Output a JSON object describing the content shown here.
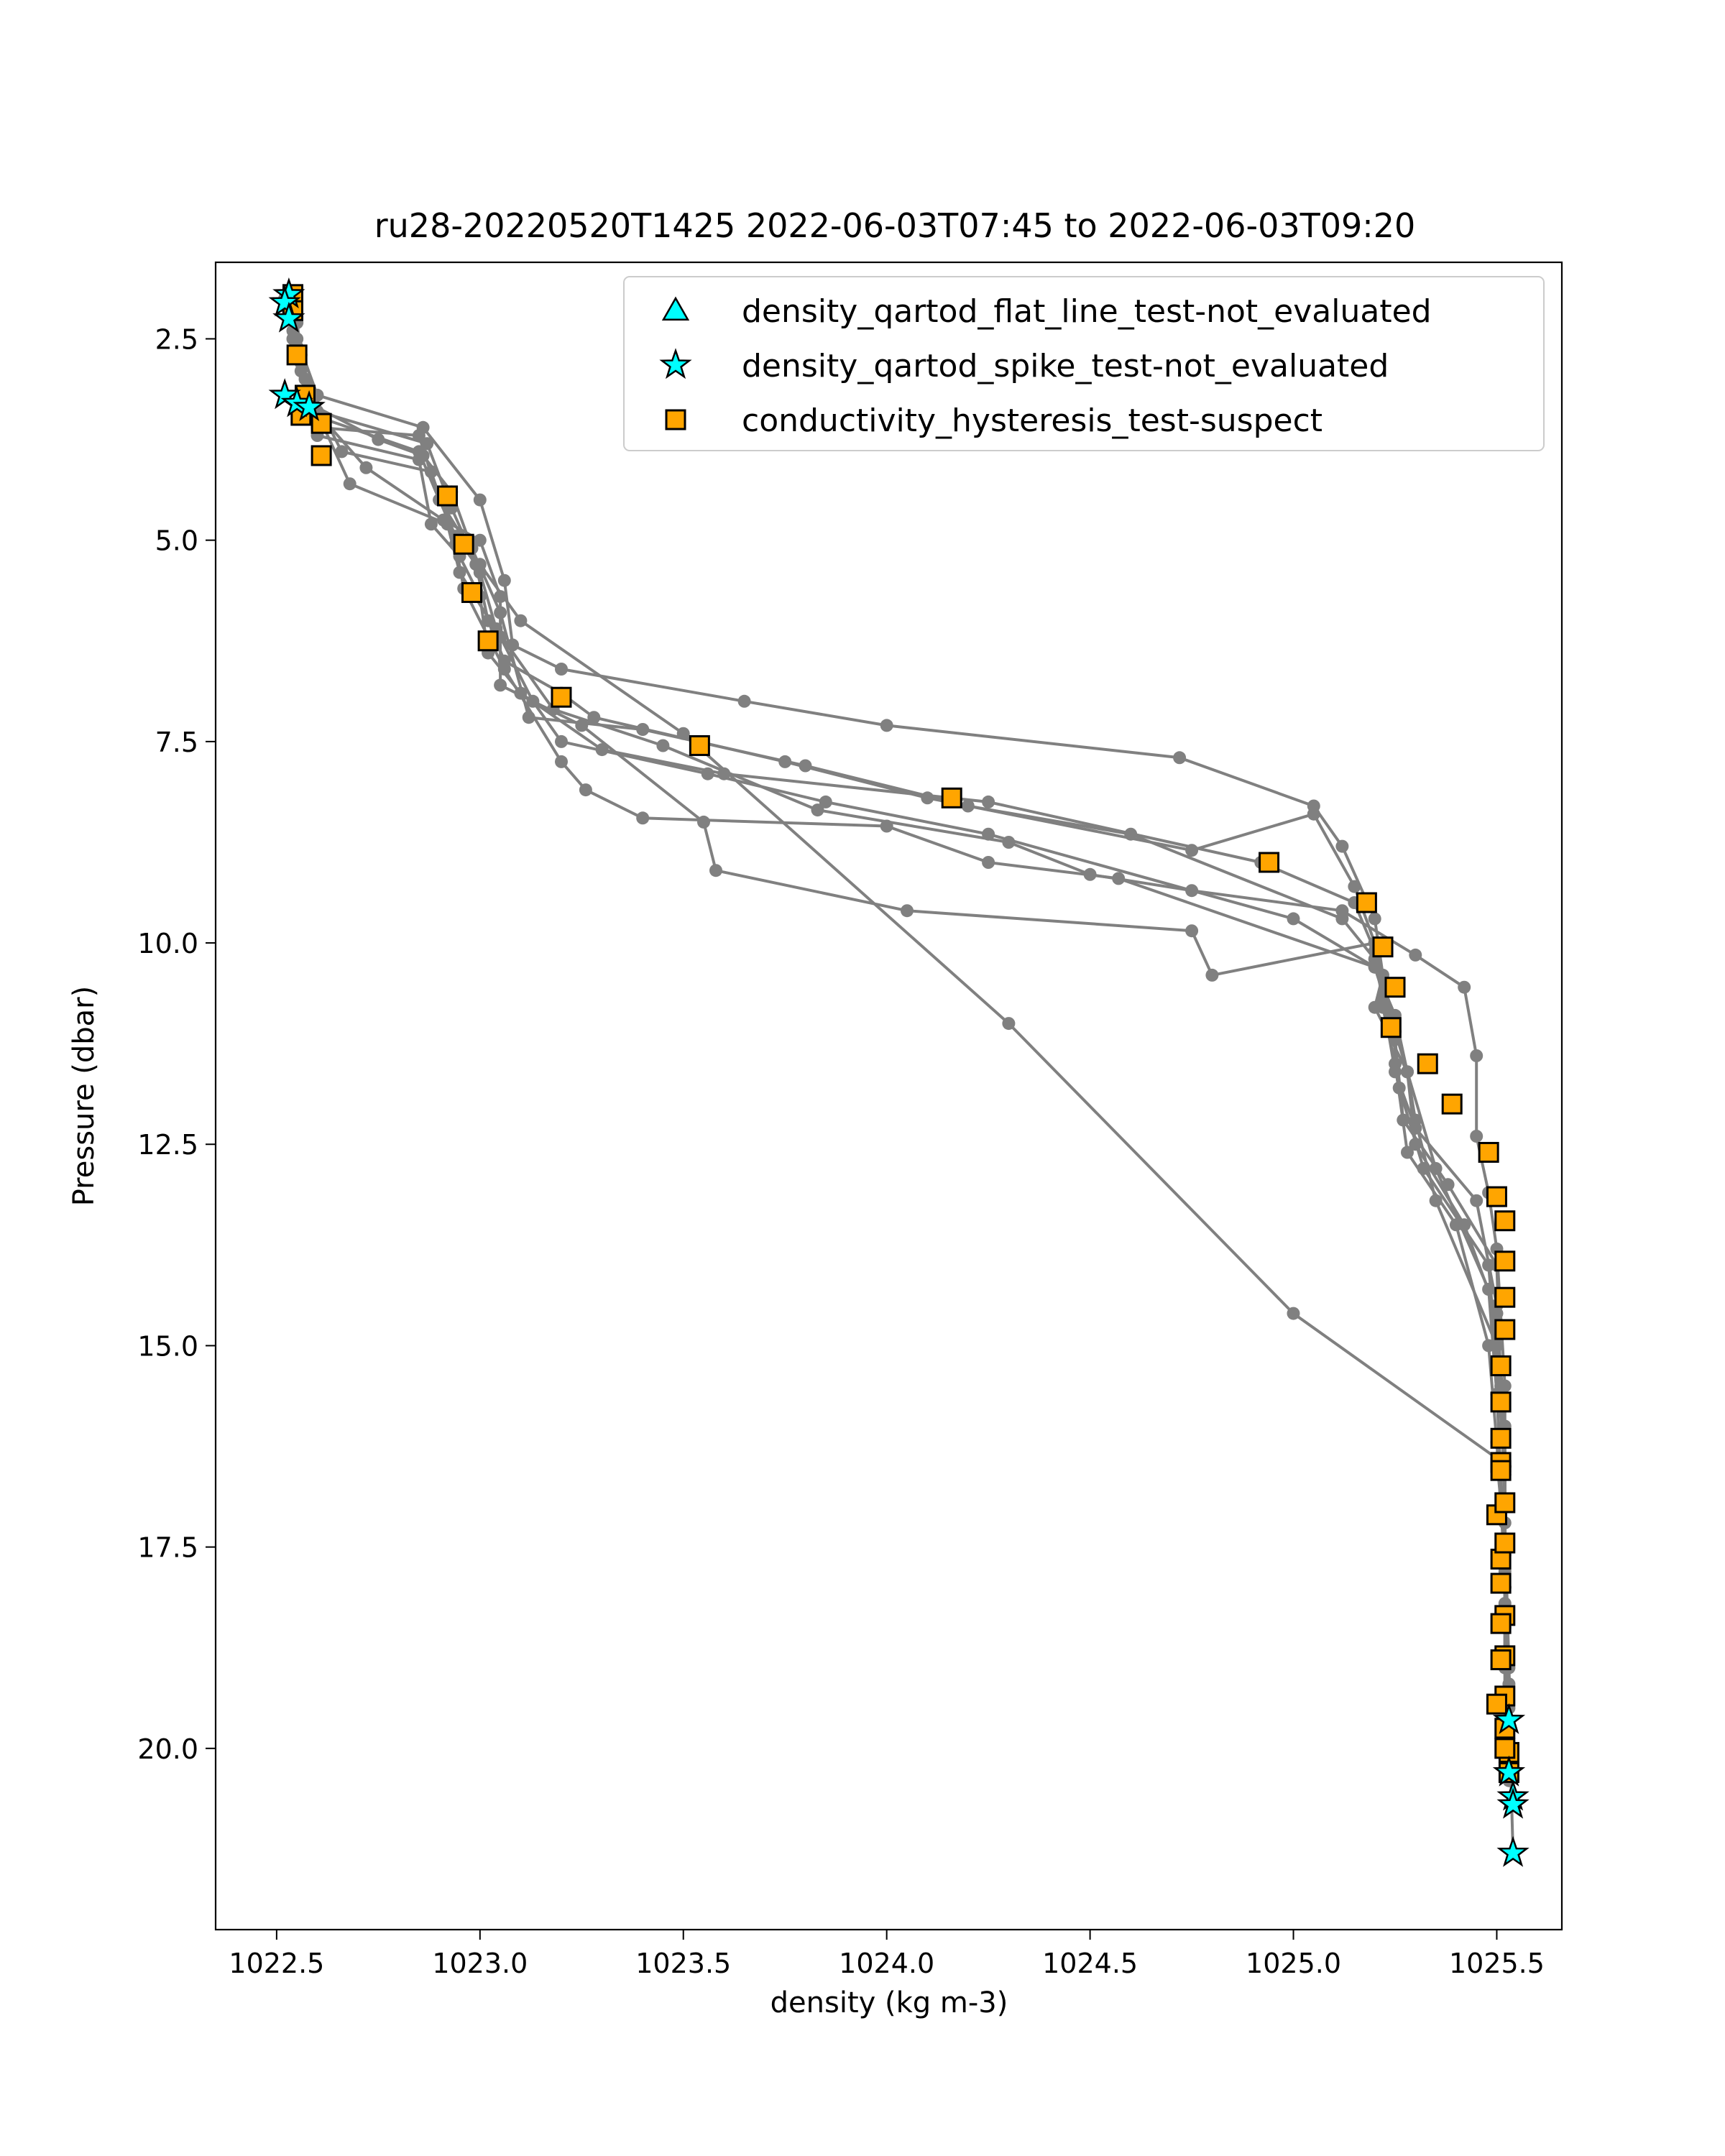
{
  "chart_data": {
    "type": "scatter",
    "title": "ru28-20220520T1425 2022-06-03T07:45 to 2022-06-03T09:20",
    "xlabel": "density (kg m-3)",
    "ylabel": "Pressure (dbar)",
    "xlim": [
      1022.35,
      1025.66
    ],
    "ylim": [
      22.25,
      1.55
    ],
    "y_inverted": true,
    "grid": false,
    "legend_position": "top-right",
    "x_ticks": [
      {
        "value": 1022.5,
        "label": "1022.5"
      },
      {
        "value": 1023.0,
        "label": "1023.0"
      },
      {
        "value": 1023.5,
        "label": "1023.5"
      },
      {
        "value": 1024.0,
        "label": "1024.0"
      },
      {
        "value": 1024.5,
        "label": "1024.5"
      },
      {
        "value": 1025.0,
        "label": "1025.0"
      },
      {
        "value": 1025.5,
        "label": "1025.5"
      }
    ],
    "y_ticks": [
      {
        "value": 2.5,
        "label": "2.5"
      },
      {
        "value": 5.0,
        "label": "5.0"
      },
      {
        "value": 7.5,
        "label": "7.5"
      },
      {
        "value": 10.0,
        "label": "10.0"
      },
      {
        "value": 12.5,
        "label": "12.5"
      },
      {
        "value": 15.0,
        "label": "15.0"
      },
      {
        "value": 17.5,
        "label": "17.5"
      },
      {
        "value": 20.0,
        "label": "20.0"
      }
    ],
    "profile_color": "#808080",
    "profiles": [
      [
        [
          1022.53,
          2.1
        ],
        [
          1022.55,
          2.5
        ],
        [
          1022.6,
          3.2
        ],
        [
          1022.86,
          3.6
        ],
        [
          1023.0,
          4.5
        ],
        [
          1023.06,
          5.5
        ],
        [
          1023.08,
          6.3
        ],
        [
          1023.2,
          6.6
        ],
        [
          1023.65,
          7.0
        ],
        [
          1024.0,
          7.3
        ],
        [
          1024.72,
          7.7
        ],
        [
          1025.05,
          8.3
        ],
        [
          1025.12,
          8.8
        ],
        [
          1025.2,
          9.7
        ],
        [
          1025.22,
          10.4
        ],
        [
          1025.2,
          10.8
        ],
        [
          1025.28,
          11.6
        ],
        [
          1025.3,
          12.5
        ],
        [
          1025.42,
          13.5
        ],
        [
          1025.5,
          14.6
        ],
        [
          1025.52,
          16.0
        ],
        [
          1025.52,
          17.5
        ],
        [
          1025.52,
          18.8
        ]
      ],
      [
        [
          1022.54,
          2.2
        ],
        [
          1022.56,
          2.8
        ],
        [
          1022.62,
          3.5
        ],
        [
          1022.85,
          3.9
        ],
        [
          1022.9,
          4.5
        ],
        [
          1022.94,
          4.95
        ],
        [
          1022.99,
          5.3
        ],
        [
          1023.02,
          6.0
        ],
        [
          1023.06,
          6.5
        ],
        [
          1023.2,
          6.9
        ],
        [
          1023.28,
          7.2
        ],
        [
          1023.75,
          7.75
        ],
        [
          1024.1,
          8.2
        ],
        [
          1024.75,
          8.85
        ],
        [
          1025.05,
          8.4
        ],
        [
          1025.15,
          9.3
        ],
        [
          1025.2,
          10.0
        ],
        [
          1025.24,
          10.9
        ],
        [
          1025.26,
          11.8
        ],
        [
          1025.32,
          12.8
        ],
        [
          1025.48,
          14.0
        ],
        [
          1025.5,
          15.2
        ],
        [
          1025.52,
          16.6
        ],
        [
          1025.52,
          18.0
        ]
      ],
      [
        [
          1022.55,
          2.3
        ],
        [
          1022.57,
          3.0
        ],
        [
          1022.6,
          3.7
        ],
        [
          1022.85,
          4.0
        ],
        [
          1022.88,
          4.8
        ],
        [
          1022.95,
          5.2
        ],
        [
          1023.0,
          5.7
        ],
        [
          1023.02,
          6.4
        ],
        [
          1023.1,
          6.9
        ],
        [
          1023.3,
          7.6
        ],
        [
          1023.6,
          7.9
        ],
        [
          1024.25,
          8.25
        ],
        [
          1024.92,
          9.0
        ],
        [
          1025.15,
          9.5
        ],
        [
          1025.2,
          10.1
        ],
        [
          1025.25,
          11.2
        ],
        [
          1025.27,
          12.2
        ],
        [
          1025.38,
          13.0
        ],
        [
          1025.5,
          14.0
        ],
        [
          1025.51,
          15.5
        ],
        [
          1025.52,
          17.0
        ],
        [
          1025.52,
          18.5
        ],
        [
          1025.52,
          19.5
        ]
      ],
      [
        [
          1022.53,
          2.1
        ],
        [
          1022.56,
          2.7
        ],
        [
          1022.58,
          3.3
        ],
        [
          1022.75,
          3.75
        ],
        [
          1022.86,
          3.95
        ],
        [
          1022.93,
          4.4
        ],
        [
          1022.98,
          5.1
        ],
        [
          1023.05,
          5.9
        ],
        [
          1023.12,
          7.2
        ],
        [
          1023.4,
          7.35
        ],
        [
          1023.8,
          7.8
        ],
        [
          1024.2,
          8.3
        ],
        [
          1024.6,
          8.65
        ],
        [
          1025.12,
          9.7
        ],
        [
          1025.2,
          10.2
        ],
        [
          1025.22,
          10.7
        ],
        [
          1025.25,
          11.6
        ],
        [
          1025.3,
          12.3
        ],
        [
          1025.45,
          13.2
        ],
        [
          1025.5,
          14.5
        ],
        [
          1025.52,
          16.5
        ],
        [
          1025.52,
          18.2
        ],
        [
          1025.53,
          20.0
        ]
      ],
      [
        [
          1022.52,
          2.0
        ],
        [
          1022.55,
          2.6
        ],
        [
          1022.6,
          3.4
        ],
        [
          1022.87,
          3.8
        ],
        [
          1022.93,
          4.6
        ],
        [
          1023.0,
          5.4
        ],
        [
          1023.04,
          6.1
        ],
        [
          1023.18,
          7.1
        ],
        [
          1023.45,
          7.55
        ],
        [
          1023.83,
          8.35
        ],
        [
          1024.3,
          8.75
        ],
        [
          1024.5,
          9.15
        ],
        [
          1024.75,
          9.35
        ],
        [
          1025.12,
          9.6
        ],
        [
          1025.3,
          10.15
        ],
        [
          1025.42,
          10.55
        ],
        [
          1025.45,
          11.4
        ],
        [
          1025.45,
          12.4
        ],
        [
          1025.48,
          13.1
        ],
        [
          1025.5,
          13.8
        ],
        [
          1025.52,
          15.5
        ],
        [
          1025.52,
          17.2
        ],
        [
          1025.53,
          19.0
        ],
        [
          1025.54,
          20.6
        ]
      ],
      [
        [
          1022.52,
          2.0
        ],
        [
          1022.54,
          2.4
        ],
        [
          1022.58,
          3.1
        ],
        [
          1022.66,
          3.9
        ],
        [
          1022.88,
          4.15
        ],
        [
          1022.94,
          5.05
        ],
        [
          1022.96,
          5.6
        ],
        [
          1023.06,
          6.6
        ],
        [
          1023.2,
          7.75
        ],
        [
          1023.26,
          8.1
        ],
        [
          1023.4,
          8.45
        ],
        [
          1024.0,
          8.55
        ],
        [
          1024.25,
          9.0
        ],
        [
          1024.57,
          9.2
        ],
        [
          1025.2,
          10.3
        ],
        [
          1025.25,
          10.9
        ],
        [
          1025.28,
          11.6
        ],
        [
          1025.3,
          12.2
        ],
        [
          1025.35,
          13.2
        ],
        [
          1025.5,
          15.0
        ],
        [
          1025.52,
          16.5
        ],
        [
          1025.52,
          18.0
        ],
        [
          1025.52,
          19.5
        ],
        [
          1025.53,
          20.4
        ]
      ],
      [
        [
          1022.52,
          2.0
        ],
        [
          1022.54,
          2.5
        ],
        [
          1022.58,
          3.2
        ],
        [
          1022.68,
          4.3
        ],
        [
          1022.92,
          4.8
        ],
        [
          1022.95,
          5.4
        ],
        [
          1023.05,
          6.2
        ],
        [
          1023.13,
          7.0
        ],
        [
          1023.2,
          7.5
        ],
        [
          1023.56,
          7.9
        ],
        [
          1023.85,
          8.25
        ],
        [
          1024.25,
          8.65
        ],
        [
          1025.0,
          9.7
        ],
        [
          1025.2,
          10.3
        ],
        [
          1025.25,
          11.1
        ],
        [
          1025.28,
          11.6
        ],
        [
          1025.35,
          12.8
        ],
        [
          1025.48,
          14.3
        ],
        [
          1025.5,
          15.6
        ],
        [
          1025.52,
          17.6
        ],
        [
          1025.53,
          19.5
        ],
        [
          1025.54,
          21.3
        ]
      ],
      [
        [
          1022.52,
          2.1
        ],
        [
          1022.55,
          2.6
        ],
        [
          1022.58,
          3.3
        ],
        [
          1022.72,
          4.1
        ],
        [
          1022.91,
          4.75
        ],
        [
          1023.0,
          5.0
        ],
        [
          1023.05,
          5.7
        ],
        [
          1023.05,
          6.8
        ],
        [
          1023.25,
          7.3
        ],
        [
          1023.55,
          8.5
        ],
        [
          1023.58,
          9.1
        ],
        [
          1024.05,
          9.6
        ],
        [
          1024.75,
          9.85
        ],
        [
          1024.8,
          10.4
        ],
        [
          1025.2,
          10.0
        ],
        [
          1025.22,
          10.8
        ],
        [
          1025.25,
          11.5
        ],
        [
          1025.28,
          12.6
        ],
        [
          1025.4,
          13.5
        ],
        [
          1025.48,
          15.0
        ],
        [
          1025.5,
          16.2
        ],
        [
          1025.52,
          17.8
        ],
        [
          1025.53,
          19.2
        ]
      ],
      [
        [
          1022.53,
          2.2
        ],
        [
          1022.56,
          2.9
        ],
        [
          1022.6,
          3.6
        ],
        [
          1022.85,
          3.7
        ],
        [
          1022.9,
          4.5
        ],
        [
          1023.0,
          5.3
        ],
        [
          1023.1,
          6.0
        ],
        [
          1023.5,
          7.4
        ],
        [
          1024.3,
          11.0
        ],
        [
          1025.0,
          14.6
        ],
        [
          1025.5,
          16.4
        ],
        [
          1025.52,
          17.5
        ],
        [
          1025.52,
          19.0
        ]
      ]
    ],
    "series": [
      {
        "name": "density_qartod_flat_line_test-not_evaluated",
        "marker": "triangle",
        "color": "#00ffff",
        "x": [],
        "y": []
      },
      {
        "name": "density_qartod_spike_test-not_evaluated",
        "marker": "star",
        "color": "#00ffff",
        "x": [
          1022.53,
          1022.52,
          1022.53,
          1022.52,
          1022.55,
          1022.58,
          1025.53,
          1025.53,
          1025.54,
          1025.54,
          1025.54
        ],
        "y": [
          1.95,
          2.05,
          2.25,
          3.2,
          3.3,
          3.35,
          19.65,
          20.3,
          20.6,
          20.7,
          21.3
        ]
      },
      {
        "name": "conductivity_hysteresis_test-suspect",
        "marker": "square",
        "color": "#ffa500",
        "x": [
          1022.54,
          1022.54,
          1022.55,
          1022.57,
          1022.56,
          1022.61,
          1022.61,
          1022.92,
          1022.96,
          1022.98,
          1023.02,
          1023.2,
          1023.54,
          1024.16,
          1024.94,
          1025.18,
          1025.22,
          1025.25,
          1025.24,
          1025.33,
          1025.39,
          1025.48,
          1025.5,
          1025.52,
          1025.52,
          1025.52,
          1025.52,
          1025.51,
          1025.51,
          1025.51,
          1025.51,
          1025.51,
          1025.5,
          1025.52,
          1025.51,
          1025.52,
          1025.51,
          1025.52,
          1025.51,
          1025.52,
          1025.51,
          1025.52,
          1025.5,
          1025.52,
          1025.53,
          1025.53,
          1025.52
        ],
        "y": [
          1.95,
          2.15,
          2.7,
          3.2,
          3.45,
          3.55,
          3.95,
          4.45,
          5.05,
          5.65,
          6.25,
          6.95,
          7.55,
          8.2,
          9.0,
          9.5,
          10.05,
          10.55,
          11.05,
          11.5,
          12.0,
          12.6,
          13.15,
          13.45,
          13.95,
          14.4,
          14.8,
          15.25,
          15.7,
          16.15,
          16.45,
          16.55,
          17.1,
          16.95,
          17.65,
          17.45,
          17.95,
          18.35,
          18.45,
          18.85,
          18.9,
          19.35,
          19.45,
          19.75,
          20.05,
          20.3,
          20.0
        ]
      }
    ]
  }
}
